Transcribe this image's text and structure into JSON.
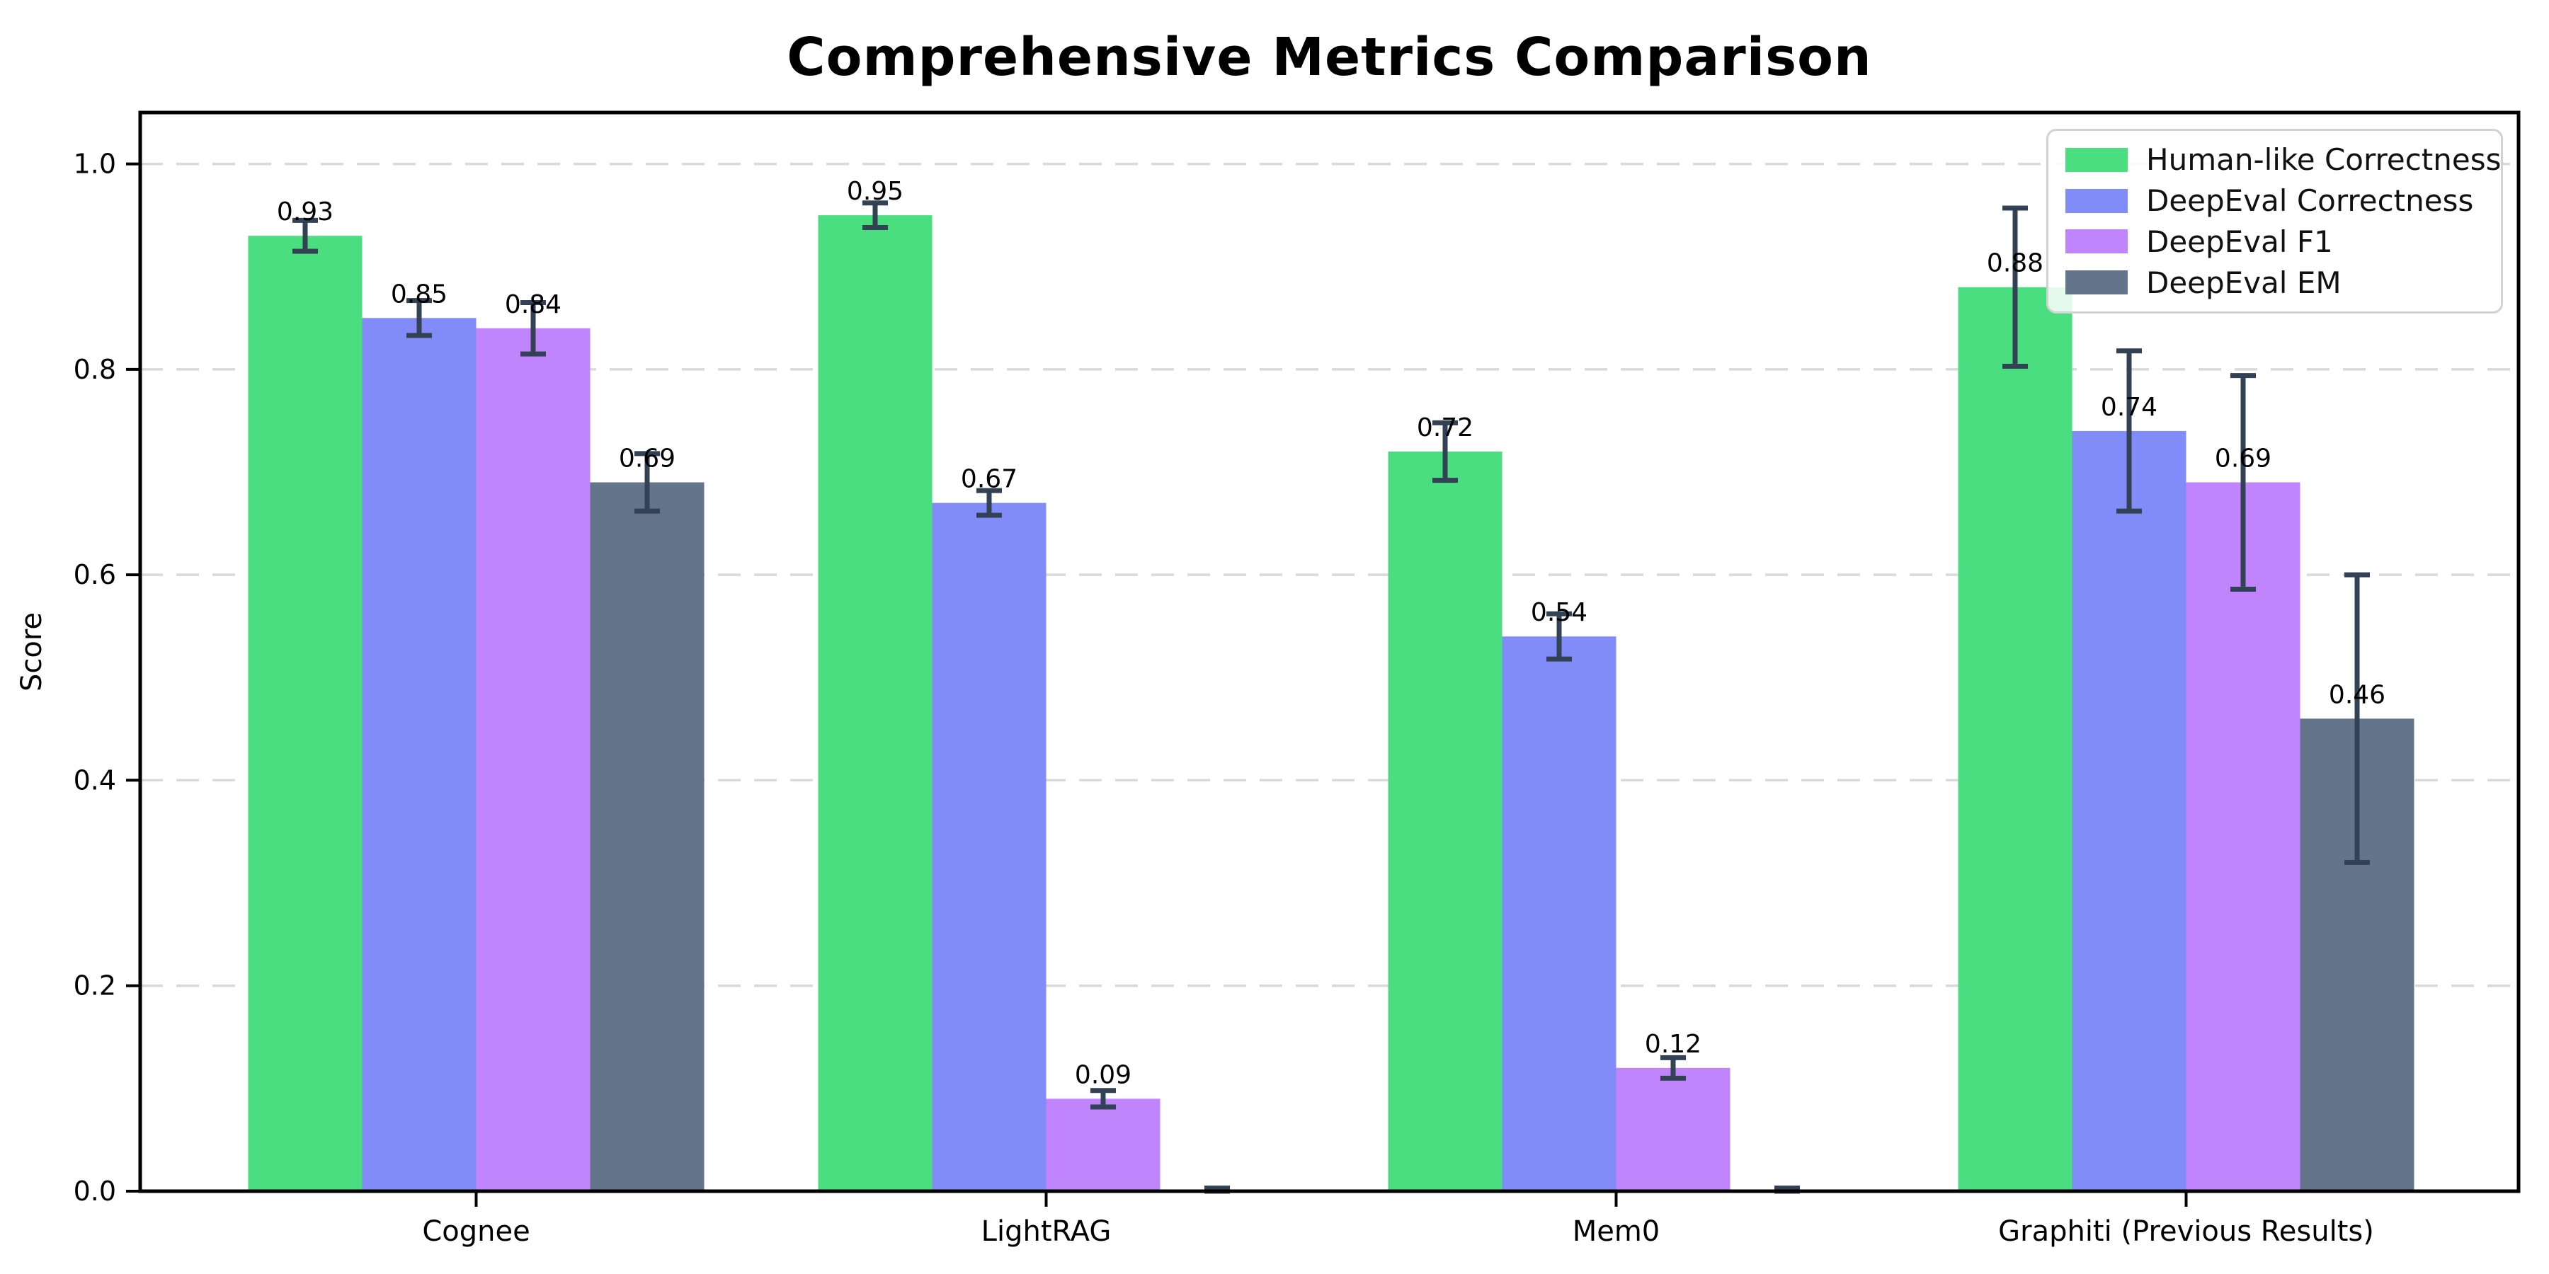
{
  "chart_data": {
    "type": "bar",
    "title": "Comprehensive Metrics Comparison",
    "ylabel": "Score",
    "xlabel": "",
    "categories": [
      "Cognee",
      "LightRAG",
      "Mem0",
      "Graphiti (Previous Results)"
    ],
    "series": [
      {
        "name": "Human-like Correctness",
        "color": "#4ade80",
        "values": [
          0.93,
          0.95,
          0.72,
          0.88
        ],
        "errors": [
          0.015,
          0.012,
          0.028,
          0.077
        ]
      },
      {
        "name": "DeepEval Correctness",
        "color": "#818cf8",
        "values": [
          0.85,
          0.67,
          0.54,
          0.74
        ],
        "errors": [
          0.017,
          0.012,
          0.022,
          0.078
        ]
      },
      {
        "name": "DeepEval F1",
        "color": "#c084fc",
        "values": [
          0.84,
          0.09,
          0.12,
          0.69
        ],
        "errors": [
          0.025,
          0.008,
          0.01,
          0.104
        ]
      },
      {
        "name": "DeepEval EM",
        "color": "#64748b",
        "values": [
          0.69,
          0.0,
          0.0,
          0.46
        ],
        "errors": [
          0.028,
          0.003,
          0.003,
          0.14
        ]
      }
    ],
    "bar_value_labels": [
      "0.93",
      "0.85",
      "0.84",
      "0.69",
      "0.95",
      "0.67",
      "0.09",
      "0.72",
      "0.54",
      "0.12",
      "0.88",
      "0.74",
      "0.69",
      "0.46"
    ],
    "ylim": [
      0.0,
      1.05
    ],
    "yticks": [
      "0.0",
      "0.2",
      "0.4",
      "0.6",
      "0.8",
      "1.0"
    ],
    "grid": "horizontal-dashed",
    "gridline_color": "#d9d9d9",
    "error_bar_color": "#334155",
    "legend_position": "upper-right",
    "axis_color": "#000000",
    "show_bar_labels": true
  }
}
